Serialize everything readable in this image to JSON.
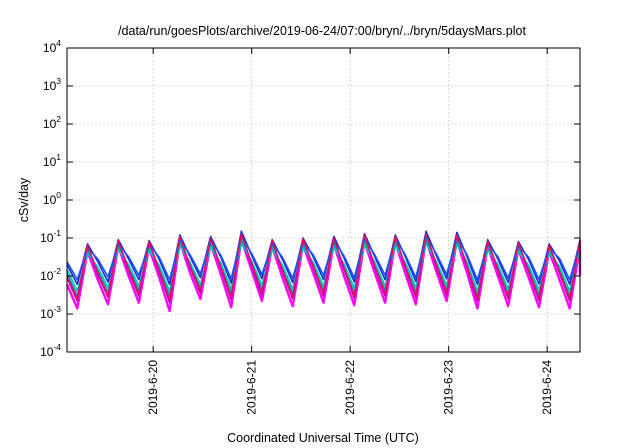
{
  "chart_data": {
    "type": "line",
    "title": "/data/run/goesPlots/archive/2019-06-24/07:00/bryn/../bryn/5daysMars.plot",
    "xlabel": "Coordinated Universal Time (UTC)",
    "ylabel": "cSv/day",
    "y_scale": "log",
    "ylim": [
      0.0001,
      10000
    ],
    "y_ticks": [
      {
        "value": 0.0001,
        "base": "10",
        "exp": "-4"
      },
      {
        "value": 0.001,
        "base": "10",
        "exp": "-3"
      },
      {
        "value": 0.01,
        "base": "10",
        "exp": "-2"
      },
      {
        "value": 0.1,
        "base": "10",
        "exp": "-1"
      },
      {
        "value": 1,
        "base": "10",
        "exp": "0"
      },
      {
        "value": 10,
        "base": "10",
        "exp": "1"
      },
      {
        "value": 100,
        "base": "10",
        "exp": "2"
      },
      {
        "value": 1000,
        "base": "10",
        "exp": "3"
      },
      {
        "value": 10000,
        "base": "10",
        "exp": "4"
      }
    ],
    "x_type": "time",
    "xlim": [
      "2019-06-19 03:00",
      "2019-06-24 08:00"
    ],
    "x_ticks": [
      {
        "value": "2019-06-20 00:00",
        "label": "2019-6-20"
      },
      {
        "value": "2019-06-21 00:00",
        "label": "2019-6-21"
      },
      {
        "value": "2019-06-22 00:00",
        "label": "2019-6-22"
      },
      {
        "value": "2019-06-23 00:00",
        "label": "2019-6-23"
      },
      {
        "value": "2019-06-24 00:00",
        "label": "2019-6-24"
      }
    ],
    "grid": true,
    "legend": "none",
    "sample_interval_hours": 2.5,
    "series": [
      {
        "color": "#ff00ff",
        "values": [
          0.006,
          0.0014,
          0.045,
          0.008,
          0.0018,
          0.06,
          0.01,
          0.002,
          0.055,
          0.009,
          0.0012,
          0.08,
          0.012,
          0.0025,
          0.07,
          0.011,
          0.0015,
          0.09,
          0.014,
          0.0022,
          0.06,
          0.009,
          0.0016,
          0.065,
          0.012,
          0.002,
          0.07,
          0.01,
          0.0017,
          0.08,
          0.012,
          0.002,
          0.075,
          0.011,
          0.0018,
          0.09,
          0.013,
          0.0022,
          0.085,
          0.012,
          0.0014,
          0.06,
          0.01,
          0.0016,
          0.05,
          0.009,
          0.0015,
          0.045,
          0.008,
          0.0014,
          0.06,
          0.01
        ]
      },
      {
        "color": "#b000b0",
        "values": [
          0.009,
          0.0022,
          0.06,
          0.011,
          0.0028,
          0.08,
          0.014,
          0.003,
          0.075,
          0.013,
          0.002,
          0.1,
          0.017,
          0.0036,
          0.095,
          0.016,
          0.0024,
          0.12,
          0.019,
          0.0032,
          0.08,
          0.013,
          0.0025,
          0.09,
          0.017,
          0.003,
          0.095,
          0.015,
          0.0026,
          0.11,
          0.017,
          0.003,
          0.1,
          0.016,
          0.0027,
          0.12,
          0.018,
          0.0032,
          0.11,
          0.017,
          0.0022,
          0.08,
          0.014,
          0.0025,
          0.07,
          0.013,
          0.0023,
          0.06,
          0.012,
          0.0022,
          0.08,
          0.014
        ]
      },
      {
        "color": "#00a0a0",
        "values": [
          0.012,
          0.003,
          0.05,
          0.014,
          0.0038,
          0.065,
          0.017,
          0.0042,
          0.06,
          0.016,
          0.003,
          0.08,
          0.02,
          0.0048,
          0.075,
          0.019,
          0.0034,
          0.095,
          0.022,
          0.0044,
          0.065,
          0.016,
          0.0035,
          0.07,
          0.02,
          0.0042,
          0.075,
          0.018,
          0.0036,
          0.085,
          0.02,
          0.0042,
          0.08,
          0.019,
          0.0038,
          0.095,
          0.021,
          0.0044,
          0.09,
          0.02,
          0.003,
          0.065,
          0.017,
          0.0035,
          0.055,
          0.016,
          0.0032,
          0.05,
          0.015,
          0.003,
          0.065,
          0.017
        ]
      },
      {
        "color": "#00c0c0",
        "values": [
          0.015,
          0.004,
          0.04,
          0.017,
          0.005,
          0.05,
          0.02,
          0.0055,
          0.048,
          0.019,
          0.004,
          0.062,
          0.023,
          0.006,
          0.058,
          0.022,
          0.0045,
          0.072,
          0.025,
          0.0058,
          0.05,
          0.019,
          0.0046,
          0.055,
          0.023,
          0.0055,
          0.058,
          0.021,
          0.0048,
          0.066,
          0.023,
          0.0055,
          0.062,
          0.022,
          0.005,
          0.072,
          0.024,
          0.0058,
          0.068,
          0.023,
          0.004,
          0.05,
          0.02,
          0.0046,
          0.044,
          0.019,
          0.0043,
          0.04,
          0.018,
          0.004,
          0.05,
          0.02
        ]
      },
      {
        "color": "#1030d0",
        "values": [
          0.02,
          0.006,
          0.07,
          0.024,
          0.007,
          0.09,
          0.028,
          0.008,
          0.085,
          0.027,
          0.006,
          0.12,
          0.032,
          0.009,
          0.11,
          0.031,
          0.0065,
          0.15,
          0.035,
          0.0085,
          0.09,
          0.027,
          0.0068,
          0.1,
          0.032,
          0.008,
          0.11,
          0.03,
          0.007,
          0.13,
          0.032,
          0.008,
          0.12,
          0.031,
          0.0072,
          0.15,
          0.034,
          0.0085,
          0.14,
          0.032,
          0.006,
          0.09,
          0.028,
          0.0068,
          0.08,
          0.027,
          0.0062,
          0.07,
          0.025,
          0.006,
          0.09,
          0.028
        ]
      },
      {
        "color": "#2050ff",
        "values": [
          0.024,
          0.008,
          0.055,
          0.028,
          0.0095,
          0.07,
          0.032,
          0.0105,
          0.068,
          0.031,
          0.008,
          0.09,
          0.036,
          0.0115,
          0.085,
          0.035,
          0.0085,
          0.11,
          0.039,
          0.011,
          0.07,
          0.031,
          0.0088,
          0.078,
          0.036,
          0.0105,
          0.085,
          0.034,
          0.009,
          0.1,
          0.036,
          0.0105,
          0.095,
          0.035,
          0.0092,
          0.11,
          0.038,
          0.011,
          0.105,
          0.036,
          0.008,
          0.07,
          0.032,
          0.0088,
          0.062,
          0.031,
          0.0082,
          0.055,
          0.029,
          0.008,
          0.07,
          0.032
        ]
      },
      {
        "color": "#e01060",
        "values": [
          0.01,
          0.0025,
          0.065,
          0.012,
          0.003,
          0.085,
          0.015,
          0.0034,
          0.08,
          0.014,
          0.0024,
          0.11,
          0.018,
          0.004,
          0.1,
          0.017,
          0.0028,
          0.13,
          0.021,
          0.0036,
          0.085,
          0.014,
          0.0028,
          0.095,
          0.018,
          0.0034,
          0.1,
          0.016,
          0.003,
          0.12,
          0.018,
          0.0034,
          0.11,
          0.017,
          0.003,
          0.13,
          0.02,
          0.0036,
          0.12,
          0.018,
          0.0025,
          0.085,
          0.015,
          0.0028,
          0.075,
          0.014,
          0.0026,
          0.065,
          0.013,
          0.0025,
          0.085,
          0.015
        ]
      }
    ]
  }
}
